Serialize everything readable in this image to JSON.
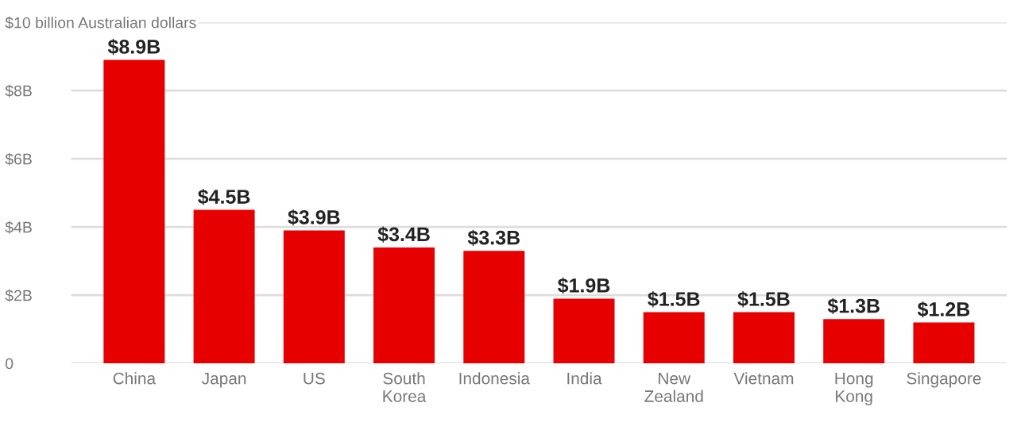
{
  "chart_data": {
    "type": "bar",
    "categories": [
      "China",
      "Japan",
      "US",
      "South Korea",
      "Indonesia",
      "India",
      "New Zealand",
      "Vietnam",
      "Hong Kong",
      "Singapore"
    ],
    "values": [
      8.9,
      4.5,
      3.9,
      3.4,
      3.3,
      1.9,
      1.5,
      1.5,
      1.3,
      1.2
    ],
    "value_labels": [
      "$8.9B",
      "$4.5B",
      "$3.9B",
      "$3.4B",
      "$3.3B",
      "$1.9B",
      "$1.5B",
      "$1.5B",
      "$1.3B",
      "$1.2B"
    ],
    "color": "#e60000",
    "ylim": [
      0,
      10
    ],
    "yticks": [
      0,
      {
        "value": 2,
        "label": "$2B"
      },
      {
        "value": 4,
        "label": "$4B"
      },
      {
        "value": 6,
        "label": "$6B"
      },
      {
        "value": 8,
        "label": "$8B"
      },
      {
        "value": 10,
        "label": "$10 billion Australian dollars"
      }
    ],
    "grid": "y"
  }
}
